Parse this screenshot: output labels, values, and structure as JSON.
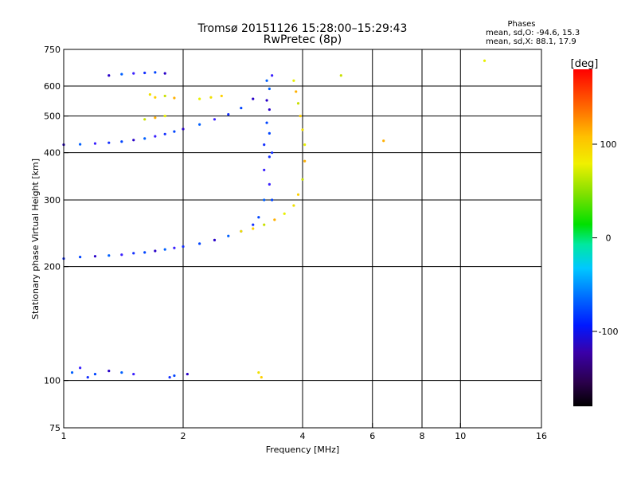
{
  "chart_data": {
    "type": "scatter",
    "title": "Tromsø 20151126 15:28:00–15:29:43",
    "subtitle": "RwPretec (8p)",
    "stats": {
      "heading": "Phases",
      "line1": "mean, sd,O: -94.6, 15.3",
      "line2": "mean, sd,X:  88.1, 17.9"
    },
    "xlabel": "Frequency [MHz]",
    "ylabel": "Stationary phase Virtual Height [km]",
    "xscale": "log",
    "yscale": "log",
    "xlim": [
      1,
      16
    ],
    "ylim": [
      75,
      750
    ],
    "xticks": [
      1,
      2,
      4,
      6,
      8,
      10,
      16
    ],
    "xtick_labels": [
      "1",
      "2",
      "4",
      "6",
      "8",
      "10",
      "16"
    ],
    "x_gridlines": [
      2,
      4,
      6,
      8,
      10
    ],
    "yticks": [
      75,
      100,
      200,
      300,
      400,
      500,
      600,
      750
    ],
    "ytick_labels": [
      "75",
      "100",
      "200",
      "300",
      "400",
      "500",
      "600",
      "750"
    ],
    "y_gridlines": [
      100,
      200,
      300,
      400,
      500,
      600
    ],
    "grid": true,
    "colorbar": {
      "label": "[deg]",
      "range": [
        -180,
        180
      ],
      "ticks": [
        100,
        0,
        -100
      ],
      "tick_labels": [
        "100",
        "0",
        "-100"
      ]
    },
    "series": [
      {
        "name": "O",
        "points": [
          [
            1.0,
            210
          ],
          [
            1.1,
            212
          ],
          [
            1.2,
            213
          ],
          [
            1.3,
            214
          ],
          [
            1.4,
            215
          ],
          [
            1.5,
            217
          ],
          [
            1.6,
            218
          ],
          [
            1.7,
            220
          ],
          [
            1.8,
            222
          ],
          [
            1.9,
            224
          ],
          [
            2.0,
            226
          ],
          [
            2.2,
            230
          ],
          [
            2.4,
            235
          ],
          [
            2.6,
            241
          ],
          [
            2.8,
            248
          ],
          [
            3.0,
            258
          ],
          [
            3.1,
            270
          ],
          [
            1.0,
            420
          ],
          [
            1.1,
            421
          ],
          [
            1.2,
            423
          ],
          [
            1.3,
            425
          ],
          [
            1.4,
            428
          ],
          [
            1.5,
            432
          ],
          [
            1.6,
            436
          ],
          [
            1.7,
            442
          ],
          [
            1.8,
            448
          ],
          [
            1.9,
            455
          ],
          [
            2.0,
            462
          ],
          [
            2.2,
            475
          ],
          [
            2.4,
            490
          ],
          [
            2.6,
            505
          ],
          [
            2.8,
            525
          ],
          [
            3.0,
            555
          ],
          [
            3.2,
            300
          ],
          [
            3.2,
            360
          ],
          [
            3.2,
            420
          ],
          [
            3.25,
            480
          ],
          [
            3.25,
            550
          ],
          [
            3.25,
            620
          ],
          [
            3.3,
            330
          ],
          [
            3.3,
            390
          ],
          [
            3.3,
            450
          ],
          [
            3.3,
            520
          ],
          [
            3.3,
            590
          ],
          [
            3.35,
            640
          ],
          [
            3.35,
            400
          ],
          [
            3.35,
            300
          ],
          [
            1.3,
            640
          ],
          [
            1.4,
            645
          ],
          [
            1.5,
            648
          ],
          [
            1.6,
            650
          ],
          [
            1.7,
            652
          ],
          [
            1.8,
            648
          ],
          [
            1.05,
            105
          ],
          [
            1.1,
            108
          ],
          [
            1.15,
            102
          ],
          [
            1.2,
            104
          ],
          [
            1.3,
            106
          ],
          [
            1.4,
            105
          ],
          [
            1.5,
            104
          ],
          [
            1.85,
            102
          ],
          [
            1.9,
            103
          ],
          [
            2.05,
            104
          ]
        ]
      },
      {
        "name": "X",
        "points": [
          [
            2.8,
            248
          ],
          [
            3.0,
            252
          ],
          [
            3.2,
            258
          ],
          [
            3.4,
            266
          ],
          [
            3.6,
            276
          ],
          [
            3.8,
            290
          ],
          [
            3.9,
            310
          ],
          [
            4.0,
            340
          ],
          [
            4.05,
            380
          ],
          [
            4.05,
            420
          ],
          [
            4.0,
            460
          ],
          [
            3.95,
            500
          ],
          [
            3.9,
            540
          ],
          [
            3.85,
            580
          ],
          [
            3.8,
            620
          ],
          [
            1.65,
            570
          ],
          [
            1.7,
            560
          ],
          [
            1.8,
            565
          ],
          [
            1.9,
            558
          ],
          [
            2.2,
            555
          ],
          [
            2.35,
            560
          ],
          [
            2.5,
            565
          ],
          [
            1.6,
            490
          ],
          [
            1.7,
            495
          ],
          [
            1.8,
            500
          ],
          [
            3.1,
            105
          ],
          [
            3.15,
            102
          ],
          [
            5.0,
            640
          ],
          [
            6.4,
            430
          ],
          [
            11.5,
            700
          ]
        ]
      }
    ]
  }
}
